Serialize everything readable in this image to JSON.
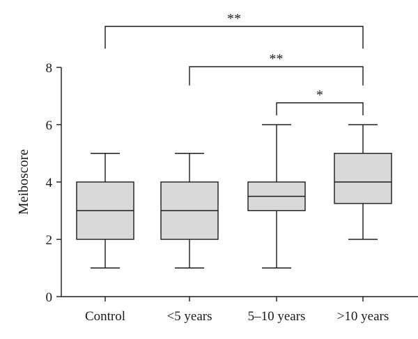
{
  "chart_data": {
    "type": "boxplot",
    "title": "",
    "xlabel": "",
    "ylabel": "Meiboscore",
    "ylim": [
      0,
      8
    ],
    "yticks": [
      0,
      2,
      4,
      6,
      8
    ],
    "categories": [
      "Control",
      "<5 years",
      "5–10 years",
      ">10 years"
    ],
    "boxes": [
      {
        "min": 1,
        "q1": 2,
        "median": 3,
        "q3": 4,
        "max": 5
      },
      {
        "min": 1,
        "q1": 2,
        "median": 3,
        "q3": 4,
        "max": 5
      },
      {
        "min": 1,
        "q1": 3,
        "median": 3.5,
        "q3": 4,
        "max": 6
      },
      {
        "min": 2,
        "q1": 3.25,
        "median": 4,
        "q3": 5,
        "max": 6
      }
    ],
    "significance": [
      {
        "from": 0,
        "to": 3,
        "label": "**"
      },
      {
        "from": 1,
        "to": 3,
        "label": "**"
      },
      {
        "from": 2,
        "to": 3,
        "label": "*"
      }
    ],
    "box_color": "#d9d9d9",
    "line_color": "#1a1a1a",
    "grid": false
  }
}
